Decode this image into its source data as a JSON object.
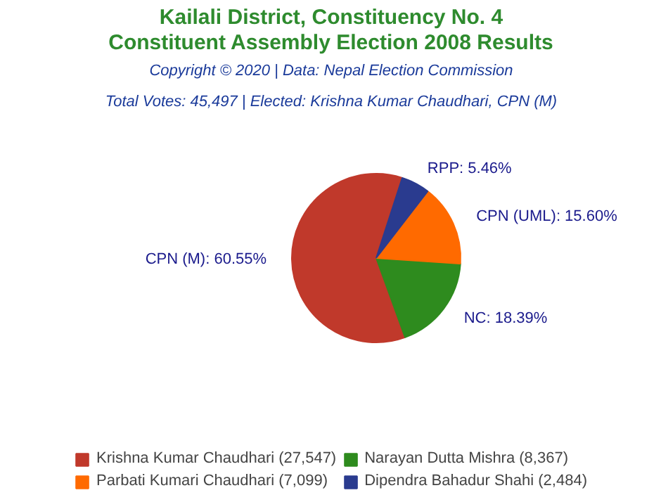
{
  "chart_data": {
    "type": "pie",
    "title": "Kailali District, Constituency No. 4\nConstituent Assembly Election 2008 Results",
    "subtitle": "Copyright © 2020 | Data: Nepal Election Commission",
    "annotations": [
      "Total Votes: 45,497 | Elected: Krishna Kumar Chaudhari, CPN (M)"
    ],
    "categories": [
      "Krishna Kumar Chaudhari (27,547)",
      "Narayan Dutta Mishra (8,367)",
      "Parbati Kumari Chaudhari (7,099)",
      "Dipendra Bahadur Shahi (2,484)"
    ],
    "values": [
      60.55,
      18.39,
      15.6,
      5.46
    ],
    "value_labels": [
      "CPN (M): 60.55%",
      "NC: 18.39%",
      "CPN (UML): 15.60%",
      "RPP: 5.46%"
    ],
    "colors": [
      "#c0392b",
      "#2e8b1e",
      "#ff6a00",
      "#2a3b8f"
    ],
    "legend": "bottom"
  }
}
